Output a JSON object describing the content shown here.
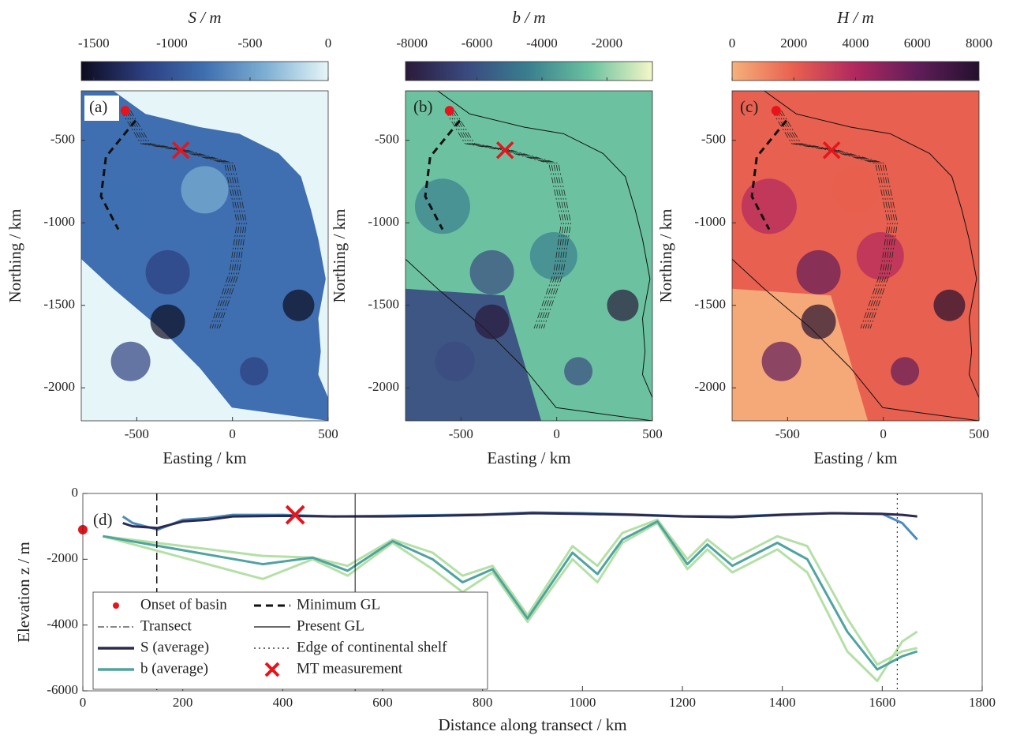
{
  "chart_data": [
    {
      "type": "map",
      "label": "(a)",
      "xlabel": "Easting / km",
      "ylabel": "Northing / km",
      "xlim": [
        -790,
        500
      ],
      "ylim": [
        -2200,
        -200
      ],
      "xticks": [
        -500,
        0,
        500
      ],
      "yticks": [
        -500,
        -1000,
        -1500,
        -2000
      ],
      "colorbar": {
        "title": "S / m",
        "lim": [
          -1580,
          0
        ],
        "ticks": [
          -1500,
          -1000,
          -500,
          0
        ],
        "colors": [
          "#0d0b1f",
          "#2c3e80",
          "#3f6fb0",
          "#7fb0d4",
          "#e6f6f8"
        ]
      },
      "onset": {
        "x": -560,
        "y": -320
      },
      "mt": {
        "x": -270,
        "y": -560
      }
    },
    {
      "type": "map",
      "label": "(b)",
      "xlabel": "Easting / km",
      "ylabel": "Northing / km",
      "xlim": [
        -790,
        500
      ],
      "ylim": [
        -2200,
        -200
      ],
      "xticks": [
        -500,
        0,
        500
      ],
      "yticks": [
        -500,
        -1000,
        -1500,
        -2000
      ],
      "colorbar": {
        "title": "b / m",
        "lim": [
          -8200,
          -600
        ],
        "ticks": [
          -8000,
          -6000,
          -4000,
          -2000
        ],
        "colors": [
          "#2a1a3a",
          "#3a4a80",
          "#3a7f90",
          "#6cc2a0",
          "#f5f7c8"
        ]
      },
      "onset": {
        "x": -560,
        "y": -320
      },
      "mt": {
        "x": -270,
        "y": -560
      }
    },
    {
      "type": "map",
      "label": "(c)",
      "xlabel": "Easting / km",
      "ylabel": "Northing / km",
      "xlim": [
        -790,
        500
      ],
      "ylim": [
        -2200,
        -200
      ],
      "xticks": [
        -500,
        0,
        500
      ],
      "yticks": [
        -500,
        -1000,
        -1500,
        -2000
      ],
      "colorbar": {
        "title": "H / m",
        "lim": [
          0,
          8000
        ],
        "ticks": [
          0,
          2000,
          4000,
          6000,
          8000
        ],
        "colors": [
          "#f6b07c",
          "#e8604f",
          "#b0285f",
          "#601d5a",
          "#24102e"
        ]
      },
      "onset": {
        "x": -560,
        "y": -320
      },
      "mt": {
        "x": -270,
        "y": -560
      }
    },
    {
      "type": "line",
      "label": "(d)",
      "xlabel": "Distance along transect / km",
      "ylabel": "Elevation z / m",
      "xlim": [
        0,
        1800
      ],
      "ylim": [
        -6000,
        0
      ],
      "xticks": [
        0,
        200,
        400,
        600,
        800,
        1000,
        1200,
        1400,
        1600,
        1800
      ],
      "yticks": [
        -6000,
        -4000,
        -2000,
        0
      ],
      "series": [
        {
          "color": "#b4e0a6",
          "x": [
            40,
            360,
            460,
            530,
            620,
            700,
            760,
            820,
            890,
            980,
            1030,
            1080,
            1150,
            1210,
            1250,
            1300,
            1390,
            1450,
            1530,
            1590,
            1640,
            1670
          ],
          "values": [
            -1300,
            -2600,
            -2000,
            -2500,
            -1500,
            -2300,
            -3000,
            -2400,
            -3900,
            -2000,
            -2700,
            -1500,
            -900,
            -2300,
            -1700,
            -2400,
            -1700,
            -2400,
            -4800,
            -5700,
            -4500,
            -4200
          ]
        },
        {
          "color": "#b4e0a6",
          "x": [
            40,
            360,
            460,
            530,
            620,
            700,
            760,
            820,
            890,
            980,
            1030,
            1080,
            1150,
            1210,
            1250,
            1300,
            1390,
            1450,
            1530,
            1590,
            1640,
            1670
          ],
          "values": [
            -1300,
            -1900,
            -1950,
            -2200,
            -1400,
            -1800,
            -2500,
            -2200,
            -3700,
            -1600,
            -2200,
            -1200,
            -800,
            -2000,
            -1400,
            -2000,
            -1300,
            -1600,
            -3800,
            -5200,
            -4800,
            -4700
          ]
        },
        {
          "name": "b (average)",
          "color": "#4fa3a0",
          "x": [
            40,
            360,
            460,
            530,
            620,
            700,
            760,
            820,
            890,
            980,
            1030,
            1080,
            1150,
            1210,
            1250,
            1300,
            1390,
            1450,
            1530,
            1590,
            1640,
            1670
          ],
          "values": [
            -1300,
            -2150,
            -1950,
            -2350,
            -1450,
            -2000,
            -2700,
            -2300,
            -3800,
            -1800,
            -2450,
            -1400,
            -850,
            -2150,
            -1550,
            -2200,
            -1500,
            -2000,
            -4200,
            -5350,
            -4950,
            -4800
          ]
        },
        {
          "color": "#4a8cc0",
          "x": [
            80,
            100,
            150,
            200,
            250,
            300,
            400,
            500,
            600,
            700,
            800,
            900,
            1000,
            1100,
            1200,
            1300,
            1400,
            1500,
            1600,
            1640,
            1670
          ],
          "values": [
            -700,
            -900,
            -1100,
            -800,
            -750,
            -650,
            -650,
            -700,
            -680,
            -660,
            -640,
            -580,
            -600,
            -640,
            -690,
            -700,
            -640,
            -600,
            -620,
            -900,
            -1400
          ]
        },
        {
          "name": "S (average)",
          "color": "#2d2a4f",
          "x": [
            80,
            100,
            150,
            200,
            250,
            300,
            400,
            500,
            600,
            700,
            800,
            900,
            1000,
            1100,
            1200,
            1300,
            1400,
            1500,
            1600,
            1640,
            1670
          ],
          "values": [
            -900,
            -1000,
            -1050,
            -850,
            -800,
            -700,
            -680,
            -700,
            -700,
            -680,
            -650,
            -600,
            -620,
            -650,
            -700,
            -720,
            -650,
            -600,
            -620,
            -650,
            -700
          ]
        }
      ],
      "vlines": [
        {
          "name": "Minimum GL",
          "x": 148,
          "style": "dashed"
        },
        {
          "name": "Present GL",
          "x": 545,
          "style": "solid"
        },
        {
          "name": "Edge of continental shelf",
          "x": 1630,
          "style": "dotted"
        }
      ],
      "markers": [
        {
          "name": "Onset of basin",
          "x": 0,
          "y": -1100,
          "shape": "dot",
          "color": "#e8141b"
        },
        {
          "name": "MT measurement",
          "x": 425,
          "y": -650,
          "shape": "cross",
          "color": "#e8141b"
        }
      ],
      "other_legend": [
        {
          "name": "Transect",
          "style": "dash-dot"
        }
      ]
    }
  ]
}
